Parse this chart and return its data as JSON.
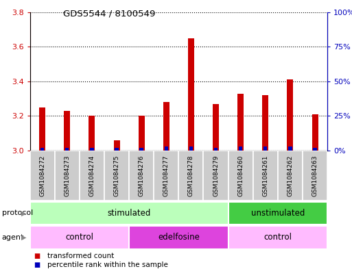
{
  "title": "GDS5544 / 8100549",
  "samples": [
    "GSM1084272",
    "GSM1084273",
    "GSM1084274",
    "GSM1084275",
    "GSM1084276",
    "GSM1084277",
    "GSM1084278",
    "GSM1084279",
    "GSM1084260",
    "GSM1084261",
    "GSM1084262",
    "GSM1084263"
  ],
  "transformed_counts": [
    3.25,
    3.23,
    3.2,
    3.06,
    3.2,
    3.28,
    3.65,
    3.27,
    3.33,
    3.32,
    3.41,
    3.21
  ],
  "percentile_ranks": [
    2,
    2,
    2,
    2,
    2,
    3,
    3,
    2,
    3,
    3,
    3,
    2
  ],
  "ylim_left": [
    3.0,
    3.8
  ],
  "ylim_right": [
    0,
    100
  ],
  "yticks_left": [
    3.0,
    3.2,
    3.4,
    3.6,
    3.8
  ],
  "yticks_right": [
    0,
    25,
    50,
    75,
    100
  ],
  "ytick_labels_right": [
    "0%",
    "25%",
    "50%",
    "75%",
    "100%"
  ],
  "bar_color_red": "#cc0000",
  "bar_color_blue": "#0000bb",
  "protocol_groups": [
    {
      "label": "stimulated",
      "start": 0,
      "end": 8,
      "color": "#bbffbb"
    },
    {
      "label": "unstimulated",
      "start": 8,
      "end": 12,
      "color": "#44cc44"
    }
  ],
  "agent_groups": [
    {
      "label": "control",
      "start": 0,
      "end": 4,
      "color": "#ffbbff"
    },
    {
      "label": "edelfosine",
      "start": 4,
      "end": 8,
      "color": "#dd44dd"
    },
    {
      "label": "control",
      "start": 8,
      "end": 12,
      "color": "#ffbbff"
    }
  ],
  "legend_items": [
    {
      "label": "transformed count",
      "color": "#cc0000"
    },
    {
      "label": "percentile rank within the sample",
      "color": "#0000bb"
    }
  ],
  "bg_color": "#ffffff",
  "left_tick_color": "#cc0000",
  "right_tick_color": "#0000bb",
  "sample_bg_color": "#cccccc",
  "gray_arrow_color": "#888888"
}
